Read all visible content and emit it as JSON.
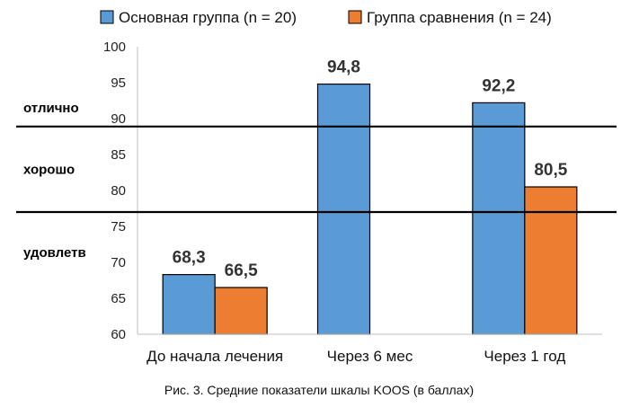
{
  "chart_data": {
    "type": "bar",
    "title": "",
    "xlabel": "",
    "ylabel": "",
    "categories": [
      "До начала лечения",
      "Через 6 мес",
      "Через 1 год"
    ],
    "series": [
      {
        "name": "Основная группа (n = 20)",
        "color": "#5B9BD5",
        "values": [
          68.3,
          94.8,
          92.2
        ],
        "labels": [
          "68,3",
          "94,8",
          "92,2"
        ]
      },
      {
        "name": "Группа сравнения (n = 24)",
        "color": "#ED7D31",
        "values": [
          66.5,
          null,
          80.5
        ],
        "labels": [
          "66,5",
          "",
          "80,5"
        ]
      }
    ],
    "ylim": [
      60,
      100
    ],
    "yticks": [
      60,
      65,
      70,
      75,
      80,
      85,
      90,
      95,
      100
    ],
    "grid": false,
    "legend": "top-center",
    "thresholds": [
      {
        "value": 88.9,
        "label": "отлично"
      },
      {
        "value": 77.0,
        "label": "хорошо"
      },
      {
        "value": null,
        "label": "удовлетв"
      }
    ]
  },
  "caption": "Рис. 3. Средние показатели шкалы KOOS (в баллах)"
}
